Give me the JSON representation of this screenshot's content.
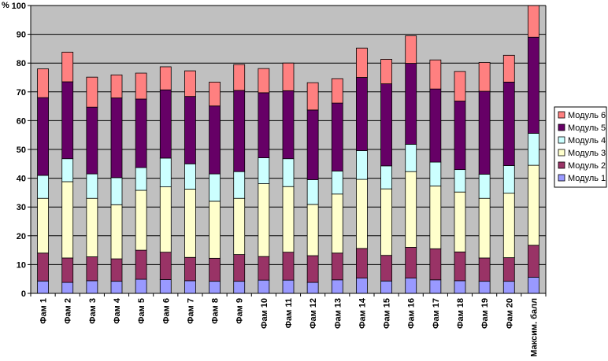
{
  "chart_data": {
    "type": "bar",
    "stacked": true,
    "ylabel": "%",
    "ylim": [
      0,
      100
    ],
    "yticks": [
      0,
      10,
      20,
      30,
      40,
      50,
      60,
      70,
      80,
      90,
      100
    ],
    "grid": true,
    "legend_position": "right",
    "categories": [
      "Фам 1",
      "Фам 2",
      "Фам 3",
      "Фам 4",
      "Фам 5",
      "Фам 6",
      "Фам 7",
      "Фам 8",
      "Фам 9",
      "Фам 10",
      "Фам 11",
      "Фам 12",
      "Фам 13",
      "Фам 14",
      "Фам 15",
      "Фам 16",
      "Фам 17",
      "Фам 18",
      "Фам 19",
      "Фам 20",
      "Максим. балл"
    ],
    "series": [
      {
        "name": "Модуль 1",
        "color": "#9999ff",
        "values": [
          4.3,
          3.8,
          4.4,
          4.2,
          4.9,
          4.8,
          4.4,
          4.2,
          4.2,
          4.6,
          4.6,
          3.8,
          4.7,
          5.3,
          4.3,
          5.3,
          4.7,
          4.4,
          4.2,
          4.2,
          5.6
        ]
      },
      {
        "name": "Модуль 2",
        "color": "#993366",
        "values": [
          9.7,
          8.5,
          8.3,
          7.8,
          10.1,
          9.5,
          8.1,
          8.0,
          9.3,
          8.2,
          9.7,
          9.3,
          9.3,
          10.3,
          8.9,
          10.7,
          10.8,
          10.0,
          8.1,
          8.2,
          11.1
        ]
      },
      {
        "name": "Модуль 3",
        "color": "#ffffcc",
        "values": [
          19.0,
          26.5,
          20.3,
          18.8,
          20.8,
          22.7,
          23.7,
          19.8,
          19.5,
          25.3,
          22.8,
          17.8,
          20.5,
          24.0,
          23.1,
          26.3,
          21.8,
          20.8,
          20.7,
          22.4,
          27.8
        ]
      },
      {
        "name": "Модуль 4",
        "color": "#ccffff",
        "values": [
          8.0,
          8.0,
          8.5,
          9.4,
          7.9,
          10.0,
          8.8,
          9.5,
          9.3,
          9.0,
          9.7,
          8.6,
          8.0,
          10.0,
          8.0,
          9.5,
          8.3,
          7.8,
          8.4,
          9.6,
          11.1
        ]
      },
      {
        "name": "Модуль 5",
        "color": "#660066",
        "values": [
          27.0,
          26.7,
          23.2,
          27.7,
          23.8,
          23.7,
          23.4,
          23.6,
          28.2,
          22.6,
          23.6,
          24.2,
          23.6,
          25.4,
          28.5,
          28.1,
          25.4,
          23.8,
          28.8,
          29.0,
          33.4
        ]
      },
      {
        "name": "Модуль 6",
        "color": "#ff8080",
        "values": [
          10.0,
          10.3,
          10.4,
          8.0,
          9.0,
          8.0,
          8.9,
          8.3,
          9.0,
          8.4,
          9.6,
          9.5,
          8.5,
          10.2,
          8.5,
          9.6,
          10.1,
          10.3,
          10.0,
          9.3,
          11.0
        ]
      }
    ]
  }
}
